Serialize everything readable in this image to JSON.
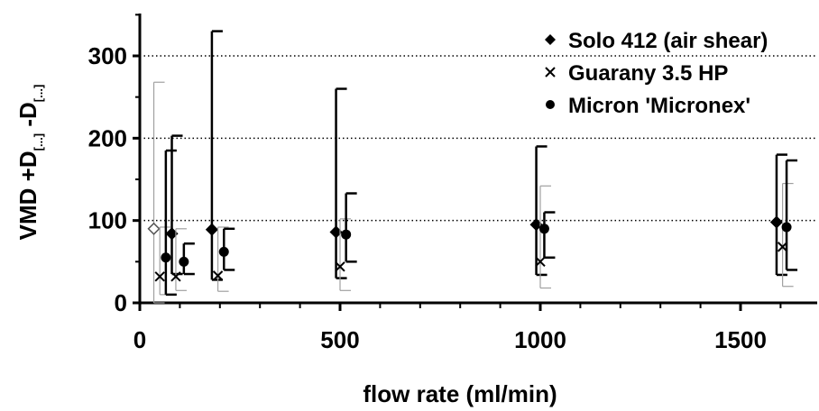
{
  "chart_data": {
    "type": "scatter",
    "xlabel": "flow rate (ml/min)",
    "ylabel": "VMD +D_[...] - D_[...]",
    "xlim": [
      0,
      1700
    ],
    "ylim": [
      0,
      350
    ],
    "x_ticks": [
      0,
      500,
      1000,
      1500
    ],
    "y_ticks": [
      0,
      100,
      200,
      300
    ],
    "grid": "horizontal dotted at 100, 200, 300",
    "legend_position": "top-right",
    "series": [
      {
        "name": "Solo 412 (air shear)",
        "marker": "diamond",
        "points": [
          {
            "x": 35,
            "y": 90,
            "ylow": 0,
            "yhigh": 268,
            "faint": true
          },
          {
            "x": 80,
            "y": 84,
            "ylow": 35,
            "yhigh": 203
          },
          {
            "x": 180,
            "y": 89,
            "ylow": 28,
            "yhigh": 330
          },
          {
            "x": 490,
            "y": 86,
            "ylow": 30,
            "yhigh": 260
          },
          {
            "x": 990,
            "y": 95,
            "ylow": 34,
            "yhigh": 190
          },
          {
            "x": 1590,
            "y": 98,
            "ylow": 34,
            "yhigh": 180
          }
        ]
      },
      {
        "name": "Guarany 3.5 HP",
        "marker": "cross",
        "points": [
          {
            "x": 50,
            "y": 32,
            "ylow": 10,
            "yhigh": 92
          },
          {
            "x": 90,
            "y": 32,
            "ylow": 15,
            "yhigh": 90
          },
          {
            "x": 195,
            "y": 33,
            "ylow": 14,
            "yhigh": 92
          },
          {
            "x": 500,
            "y": 44,
            "ylow": 15,
            "yhigh": 102
          },
          {
            "x": 1000,
            "y": 50,
            "ylow": 18,
            "yhigh": 142
          },
          {
            "x": 1605,
            "y": 68,
            "ylow": 20,
            "yhigh": 145
          }
        ]
      },
      {
        "name": "Micron 'Micronex'",
        "marker": "circle",
        "points": [
          {
            "x": 65,
            "y": 55,
            "ylow": 10,
            "yhigh": 185
          },
          {
            "x": 110,
            "y": 50,
            "ylow": 35,
            "yhigh": 72
          },
          {
            "x": 210,
            "y": 62,
            "ylow": 40,
            "yhigh": 90
          },
          {
            "x": 515,
            "y": 83,
            "ylow": 50,
            "yhigh": 133
          },
          {
            "x": 1010,
            "y": 90,
            "ylow": 55,
            "yhigh": 110
          },
          {
            "x": 1615,
            "y": 92,
            "ylow": 40,
            "yhigh": 173
          }
        ]
      }
    ]
  },
  "legend": {
    "items": [
      "Solo 412 (air shear)",
      "Guarany 3.5 HP",
      "Micron 'Micronex'"
    ]
  }
}
